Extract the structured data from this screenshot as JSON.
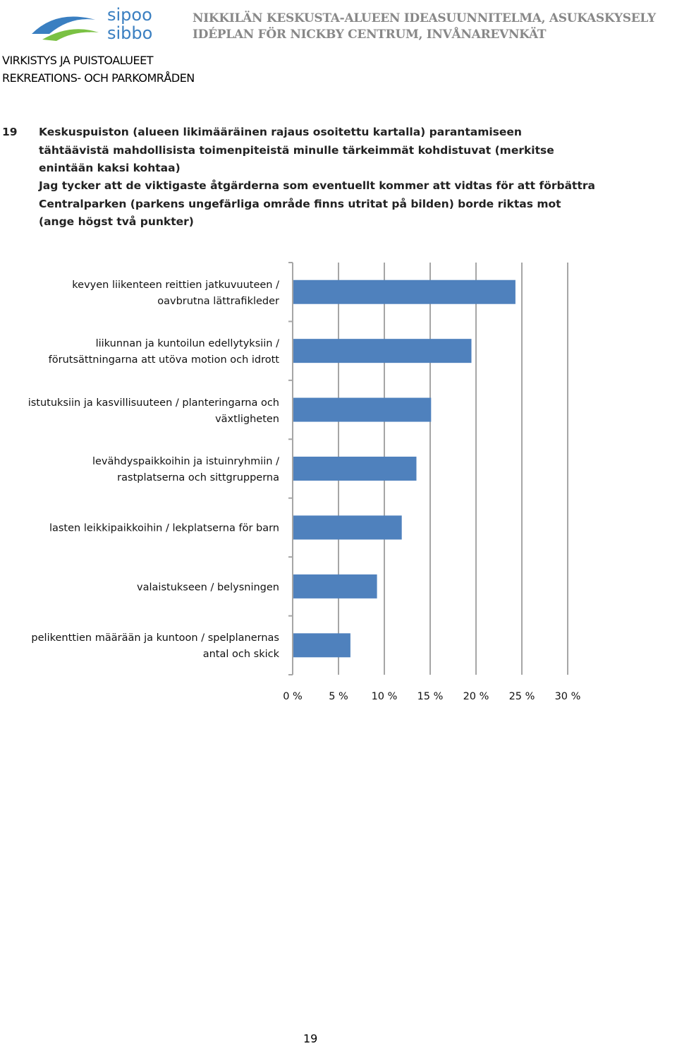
{
  "header": {
    "logo": [
      "sipoo",
      "sibbo"
    ],
    "title": [
      "NIKKILÄN KESKUSTA-ALUEEN IDEASUUNNITELMA, ASUKASKYSELY",
      "IDÉPLAN FÖR NICKBY CENTRUM, INVÅNAREVNKÄT"
    ]
  },
  "section": [
    "VIRKISTYS JA PUISTOALUEET",
    "REKREATIONS- OCH PARKOMRÅDEN"
  ],
  "question": {
    "number": "19",
    "text_fi": "Keskuspuiston (alueen likimääräinen rajaus osoitettu kartalla) parantamiseen tähtäävistä mahdollisista toimenpiteistä minulle tärkeimmät kohdistuvat (merkitse enintään kaksi kohtaa)",
    "text_sv": "Jag tycker att de viktigaste åtgärderna som eventuellt kommer att vidtas för att förbättra Centralparken (parkens ungefärliga område finns utritat på bilden) borde riktas mot (ange högst två punkter)"
  },
  "chart_data": {
    "type": "barh",
    "categories": [
      "kevyen liikenteen reittien jatkuvuuteen /\noavbrutna lättrafikleder",
      "liikunnan ja kuntoilun edellytyksiin /\nförutsättningarna att utöva motion och idrott",
      "istutuksiin ja kasvillisuuteen / planteringarna och\nväxtligheten",
      "levähdyspaikkoihin ja istuinryhmiin /\nrastplatserna och sittgrupperna",
      "lasten leikkipaikkoihin / lekplatserna för barn",
      "valaistukseen / belysningen",
      "pelikenttien määrään ja kuntoon / spelplanernas\nantal och skick"
    ],
    "values": [
      24.3,
      19.5,
      15.1,
      13.5,
      11.9,
      9.2,
      6.3
    ],
    "color": "#4f81bd",
    "xlim": [
      0,
      30
    ],
    "xticks": [
      {
        "value": 0,
        "label": "0 %"
      },
      {
        "value": 5,
        "label": "5 %"
      },
      {
        "value": 10,
        "label": "10 %"
      },
      {
        "value": 15,
        "label": "15 %"
      },
      {
        "value": 20,
        "label": "20 %"
      },
      {
        "value": 25,
        "label": "25 %"
      },
      {
        "value": 30,
        "label": "30 %"
      }
    ],
    "grid": true
  },
  "page_number": "19"
}
